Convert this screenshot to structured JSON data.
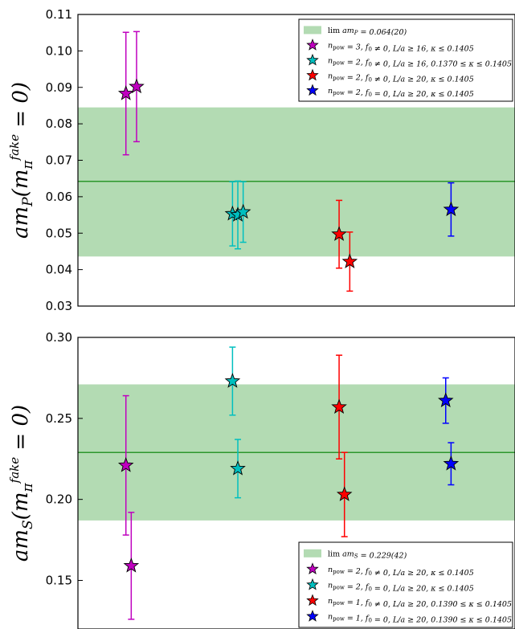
{
  "chart_data": [
    {
      "type": "scatter",
      "ylabel": "am_P(m_π^fake = 0)",
      "ylim": [
        0.03,
        0.11
      ],
      "yticks": [
        "0.03",
        "0.04",
        "0.05",
        "0.06",
        "0.07",
        "0.08",
        "0.09",
        "0.10",
        "0.11"
      ],
      "band": {
        "value": 0.0642,
        "lower": 0.0436,
        "upper": 0.0845,
        "label": "lim_{m_π^fake→0} am_P = 0.064(20)",
        "color": "#b3dbb3",
        "line_color": "#008000"
      },
      "legend_position": "top-right",
      "series": [
        {
          "name": "n_pow = 3, f_0 ≠ 0, L/a ≥ 16, κ ≤ 0.1405",
          "color": "#bf00bf",
          "points": [
            {
              "x": 0.95,
              "y": 0.0883,
              "err": 0.0168
            },
            {
              "x": 1.05,
              "y": 0.0902,
              "err": 0.0151
            }
          ]
        },
        {
          "name": "n_pow = 2, f_0 ≠ 0, L/a ≥ 16, 0.1370 ≤ κ ≤ 0.1405",
          "color": "#00bfbf",
          "points": [
            {
              "x": 1.95,
              "y": 0.0553,
              "err": 0.0088
            },
            {
              "x": 2.0,
              "y": 0.055,
              "err": 0.0093
            },
            {
              "x": 2.05,
              "y": 0.0558,
              "err": 0.0083
            }
          ]
        },
        {
          "name": "n_pow = 2, f_0 ≠ 0, L/a ≥ 20, κ ≤ 0.1405",
          "color": "#ff0000",
          "points": [
            {
              "x": 2.95,
              "y": 0.0497,
              "err": 0.0093
            },
            {
              "x": 3.05,
              "y": 0.0422,
              "err": 0.0081
            }
          ]
        },
        {
          "name": "n_pow = 2, f_0 = 0, L/a ≥ 20, κ ≤ 0.1405",
          "color": "#0000ff",
          "points": [
            {
              "x": 4.0,
              "y": 0.0565,
              "err": 0.0073
            }
          ]
        }
      ]
    },
    {
      "type": "scatter",
      "ylabel": "am_S(m_π^fake = 0)",
      "ylim": [
        0.12,
        0.3
      ],
      "yticks": [
        "0.15",
        "0.20",
        "0.25",
        "0.30"
      ],
      "band": {
        "value": 0.229,
        "lower": 0.187,
        "upper": 0.271,
        "label": "lim_{m_π^fake→0} am_S = 0.229(42)",
        "color": "#b3dbb3",
        "line_color": "#008000"
      },
      "legend_position": "bottom-right",
      "series": [
        {
          "name": "n_pow = 2, f_0 ≠ 0, L/a ≥ 20, κ ≤ 0.1405",
          "color": "#bf00bf",
          "points": [
            {
              "x": 0.95,
              "y": 0.221,
              "err": 0.043
            },
            {
              "x": 1.0,
              "y": 0.159,
              "err": 0.033
            }
          ]
        },
        {
          "name": "n_pow = 2, f_0 = 0, L/a ≥ 20, κ ≤ 0.1405",
          "color": "#00bfbf",
          "points": [
            {
              "x": 1.95,
              "y": 0.273,
              "err": 0.021
            },
            {
              "x": 2.0,
              "y": 0.219,
              "err": 0.018
            }
          ]
        },
        {
          "name": "n_pow = 1, f_0 ≠ 0, L/a ≥ 20, 0.1390 ≤ κ ≤ 0.1405",
          "color": "#ff0000",
          "points": [
            {
              "x": 2.95,
              "y": 0.257,
              "err": 0.032
            },
            {
              "x": 3.0,
              "y": 0.203,
              "err": 0.026
            }
          ]
        },
        {
          "name": "n_pow = 1, f_0 = 0, L/a ≥ 20, 0.1390 ≤ κ ≤ 0.1405",
          "color": "#0000ff",
          "points": [
            {
              "x": 3.95,
              "y": 0.261,
              "err": 0.014
            },
            {
              "x": 4.0,
              "y": 0.222,
              "err": 0.013
            }
          ]
        }
      ]
    }
  ]
}
